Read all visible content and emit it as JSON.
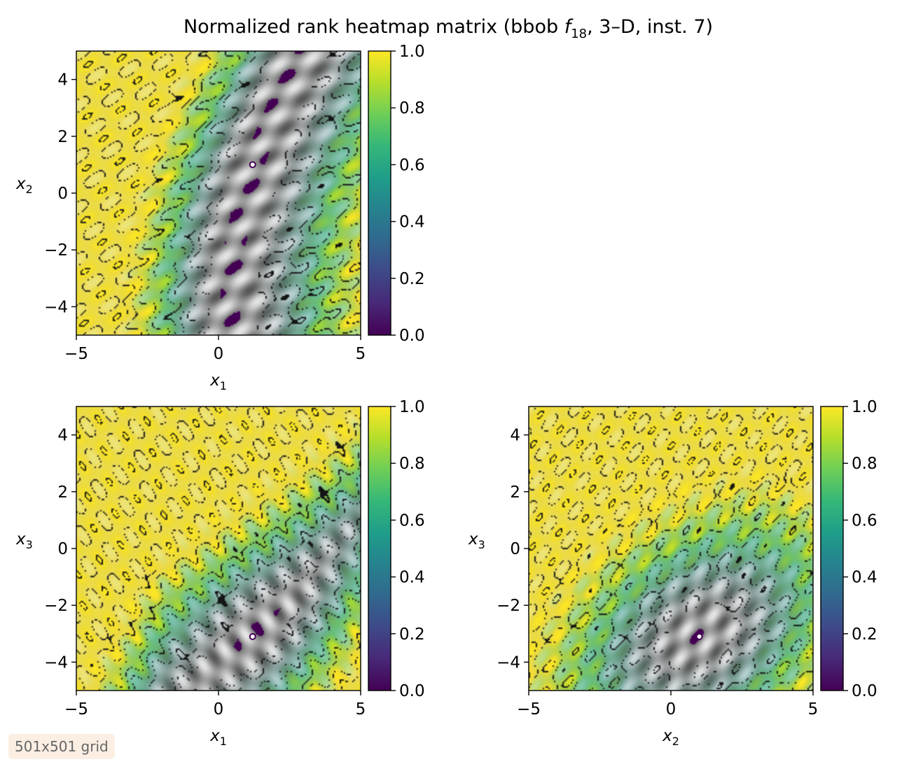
{
  "title": {
    "prefix": "Normalized rank heatmap matrix (bbob ",
    "f": "f",
    "sub": "18",
    "suffix": ", 3–D, inst. 7)"
  },
  "badge": "501x501 grid",
  "colormap": "viridis",
  "colormap_stops": [
    "#440154",
    "#482878",
    "#3e4989",
    "#31688e",
    "#26828e",
    "#1f9e89",
    "#35b779",
    "#6ece58",
    "#b5de2b",
    "#fde725"
  ],
  "chart_data": [
    {
      "type": "heatmap",
      "panel": "x1-x2",
      "xlabel": {
        "var": "x",
        "sub": "1"
      },
      "ylabel": {
        "var": "x",
        "sub": "2"
      },
      "xlim": [
        -5,
        5
      ],
      "ylim": [
        -5,
        5
      ],
      "xticks": [
        -5,
        0,
        5
      ],
      "yticks": [
        -4,
        -2,
        0,
        2,
        4
      ],
      "xtick_labels": [
        "−5",
        "0",
        "5"
      ],
      "ytick_labels": [
        "−4",
        "−2",
        "0",
        "2",
        "4"
      ],
      "value_range": [
        0,
        1
      ],
      "colorbar_ticks": [
        "0.0",
        "0.2",
        "0.4",
        "0.6",
        "0.8",
        "1.0"
      ],
      "minimum_approx": [
        1.2,
        1.0
      ]
    },
    {
      "type": "heatmap",
      "panel": "x1-x3",
      "xlabel": {
        "var": "x",
        "sub": "1"
      },
      "ylabel": {
        "var": "x",
        "sub": "3"
      },
      "xlim": [
        -5,
        5
      ],
      "ylim": [
        -5,
        5
      ],
      "xticks": [
        -5,
        0,
        5
      ],
      "yticks": [
        -4,
        -2,
        0,
        2,
        4
      ],
      "xtick_labels": [
        "−5",
        "0",
        "5"
      ],
      "ytick_labels": [
        "−4",
        "−2",
        "0",
        "2",
        "4"
      ],
      "value_range": [
        0,
        1
      ],
      "colorbar_ticks": [
        "0.0",
        "0.2",
        "0.4",
        "0.6",
        "0.8",
        "1.0"
      ],
      "minimum_approx": [
        1.2,
        -3.1
      ]
    },
    {
      "type": "heatmap",
      "panel": "x2-x3",
      "xlabel": {
        "var": "x",
        "sub": "2"
      },
      "ylabel": {
        "var": "x",
        "sub": "3"
      },
      "xlim": [
        -5,
        5
      ],
      "ylim": [
        -5,
        5
      ],
      "xticks": [
        -5,
        0,
        5
      ],
      "yticks": [
        -4,
        -2,
        0,
        2,
        4
      ],
      "xtick_labels": [
        "−5",
        "0",
        "5"
      ],
      "ytick_labels": [
        "−4",
        "−2",
        "0",
        "2",
        "4"
      ],
      "value_range": [
        0,
        1
      ],
      "colorbar_ticks": [
        "0.0",
        "0.2",
        "0.4",
        "0.6",
        "0.8",
        "1.0"
      ],
      "minimum_approx": [
        1.0,
        -3.1
      ]
    }
  ]
}
